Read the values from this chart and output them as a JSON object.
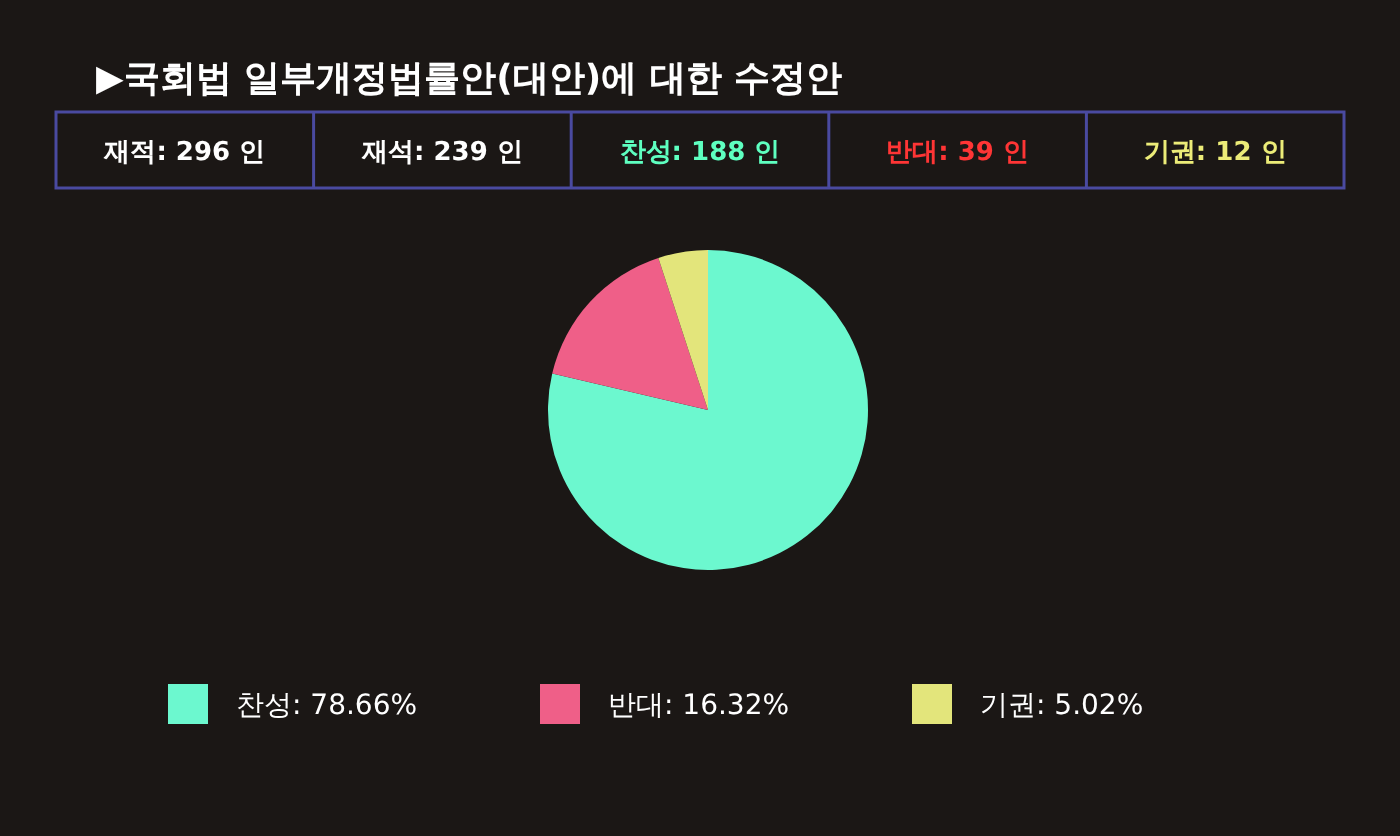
{
  "chart_data": {
    "type": "pie",
    "title": "▶국회법 일부개정법률안(대안)에 대한 수정안",
    "categories": [
      "찬성",
      "반대",
      "기권"
    ],
    "values": [
      78.66,
      16.32,
      5.02
    ],
    "value_labels": [
      "78.66%",
      "16.32%",
      "5.02%"
    ],
    "colors": [
      "#6cf8cf",
      "#ef5f88",
      "#e3e57b"
    ],
    "legend": "bottom",
    "annotations": [
      "재적: 296 인",
      "재석: 239 인",
      "찬성: 188 인",
      "반대: 39 인",
      "기권: 12 인"
    ]
  }
}
